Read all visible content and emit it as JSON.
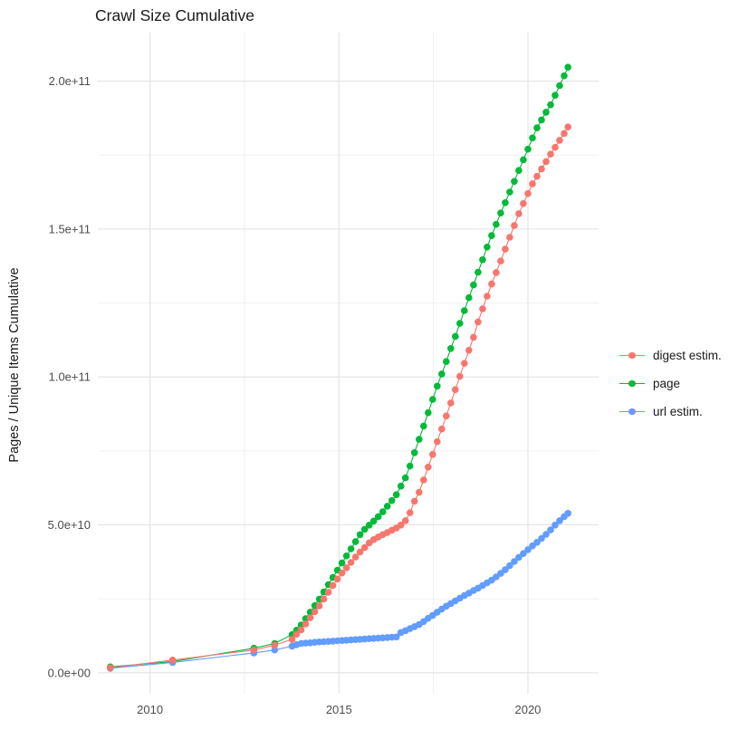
{
  "title": "Crawl Size Cumulative",
  "chart_data": {
    "type": "scatter",
    "title": "Crawl Size Cumulative",
    "xlabel": "",
    "ylabel": "Pages / Unique Items Cumulative",
    "y_unit_multiplier": 1000000000.0,
    "note": "y values stored in billions (1e9); points are per-crawl cumulative totals estimated from the plot",
    "x": [
      2008.95,
      2010.6,
      2012.75,
      2013.3,
      2013.76,
      2013.88,
      2014.0,
      2014.12,
      2014.24,
      2014.36,
      2014.48,
      2014.6,
      2014.72,
      2014.84,
      2014.96,
      2015.08,
      2015.2,
      2015.32,
      2015.44,
      2015.56,
      2015.68,
      2015.8,
      2015.92,
      2016.04,
      2016.16,
      2016.28,
      2016.4,
      2016.52,
      2016.64,
      2016.76,
      2016.88,
      2017.0,
      2017.12,
      2017.24,
      2017.36,
      2017.48,
      2017.6,
      2017.72,
      2017.84,
      2017.96,
      2018.08,
      2018.2,
      2018.32,
      2018.44,
      2018.56,
      2018.68,
      2018.8,
      2018.92,
      2019.04,
      2019.16,
      2019.28,
      2019.4,
      2019.52,
      2019.64,
      2019.76,
      2019.88,
      2020.0,
      2020.12,
      2020.24,
      2020.36,
      2020.48,
      2020.6,
      2020.72,
      2020.84,
      2020.96,
      2021.06
    ],
    "series": [
      {
        "name": "digest estim.",
        "color": "#F8766D",
        "values": [
          1.7,
          4.3,
          7.7,
          9.3,
          11.3,
          13.0,
          14.5,
          16.5,
          18.6,
          20.6,
          22.6,
          24.9,
          27.2,
          29.5,
          31.7,
          33.7,
          35.5,
          37.3,
          39.1,
          40.8,
          42.3,
          43.9,
          45.0,
          45.9,
          46.7,
          47.4,
          48.2,
          48.9,
          49.9,
          51.4,
          54.1,
          58.0,
          61.0,
          65.2,
          69.5,
          73.8,
          78.1,
          82.4,
          86.8,
          91.2,
          95.7,
          100.2,
          104.6,
          109.0,
          113.4,
          118.6,
          123.0,
          127.3,
          131.4,
          135.3,
          139.2,
          143.2,
          147.2,
          151.2,
          155.2,
          158.6,
          162.0,
          165.3,
          167.8,
          170.3,
          172.8,
          175.3,
          177.6,
          180.0,
          182.3,
          184.5
        ]
      },
      {
        "name": "page",
        "color": "#00BA38",
        "values": [
          2.0,
          3.8,
          8.3,
          9.9,
          12.9,
          14.4,
          16.1,
          18.3,
          20.5,
          22.7,
          24.9,
          27.3,
          29.8,
          32.2,
          34.7,
          37.1,
          39.5,
          41.9,
          44.3,
          46.7,
          48.5,
          49.9,
          51.3,
          52.8,
          54.4,
          56.3,
          58.2,
          60.2,
          63.1,
          65.9,
          69.9,
          74.4,
          78.9,
          83.4,
          87.9,
          92.4,
          96.9,
          101.0,
          105.2,
          109.6,
          113.7,
          118.1,
          122.4,
          126.8,
          131.1,
          135.4,
          139.6,
          143.9,
          147.8,
          151.6,
          155.4,
          158.9,
          162.5,
          166.1,
          169.8,
          173.4,
          177.0,
          180.8,
          184.2,
          186.9,
          189.5,
          192.0,
          195.2,
          198.5,
          201.8,
          204.7
        ]
      },
      {
        "name": "url estim.",
        "color": "#619CFF",
        "values": [
          1.5,
          3.5,
          6.7,
          7.7,
          9.0,
          9.5,
          9.9,
          10.0,
          10.1,
          10.3,
          10.4,
          10.5,
          10.6,
          10.7,
          10.8,
          10.9,
          11.0,
          11.1,
          11.2,
          11.3,
          11.4,
          11.5,
          11.6,
          11.7,
          11.8,
          11.9,
          12.0,
          12.1,
          13.6,
          14.2,
          14.9,
          15.6,
          16.3,
          17.3,
          18.4,
          19.4,
          20.5,
          21.5,
          22.5,
          23.4,
          24.3,
          25.2,
          26.1,
          26.9,
          27.8,
          28.6,
          29.5,
          30.4,
          31.3,
          32.4,
          33.6,
          34.8,
          36.2,
          37.6,
          39.0,
          40.3,
          41.6,
          42.9,
          44.1,
          45.4,
          46.8,
          48.3,
          49.9,
          51.4,
          52.8,
          53.9
        ]
      }
    ],
    "axes": {
      "x_ticks": {
        "values": [
          2010,
          2015,
          2020
        ],
        "labels": [
          "2010",
          "2015",
          "2020"
        ],
        "minor": [
          2012.5,
          2017.5
        ]
      },
      "y_ticks": {
        "values": [
          0,
          50,
          100,
          150,
          200
        ],
        "labels": [
          "0.0e+00",
          "5.0e+10",
          "1.0e+11",
          "1.5e+11",
          "2.0e+11"
        ],
        "minor": [
          25,
          75,
          125,
          175
        ]
      },
      "x_domain": [
        2008.62,
        2021.87
      ],
      "y_domain": [
        -7.1,
        216.4
      ]
    },
    "grid": true,
    "legend_position": "right",
    "draw_order": [
      1,
      2,
      0
    ],
    "style": {
      "grid_major_color": "#e2e2e2",
      "grid_minor_color": "#efefef",
      "tick_text_color": "#4d4d4d",
      "title_color": "#1a1a1a",
      "point_radius": 3.8,
      "line_width": 1.1
    }
  }
}
